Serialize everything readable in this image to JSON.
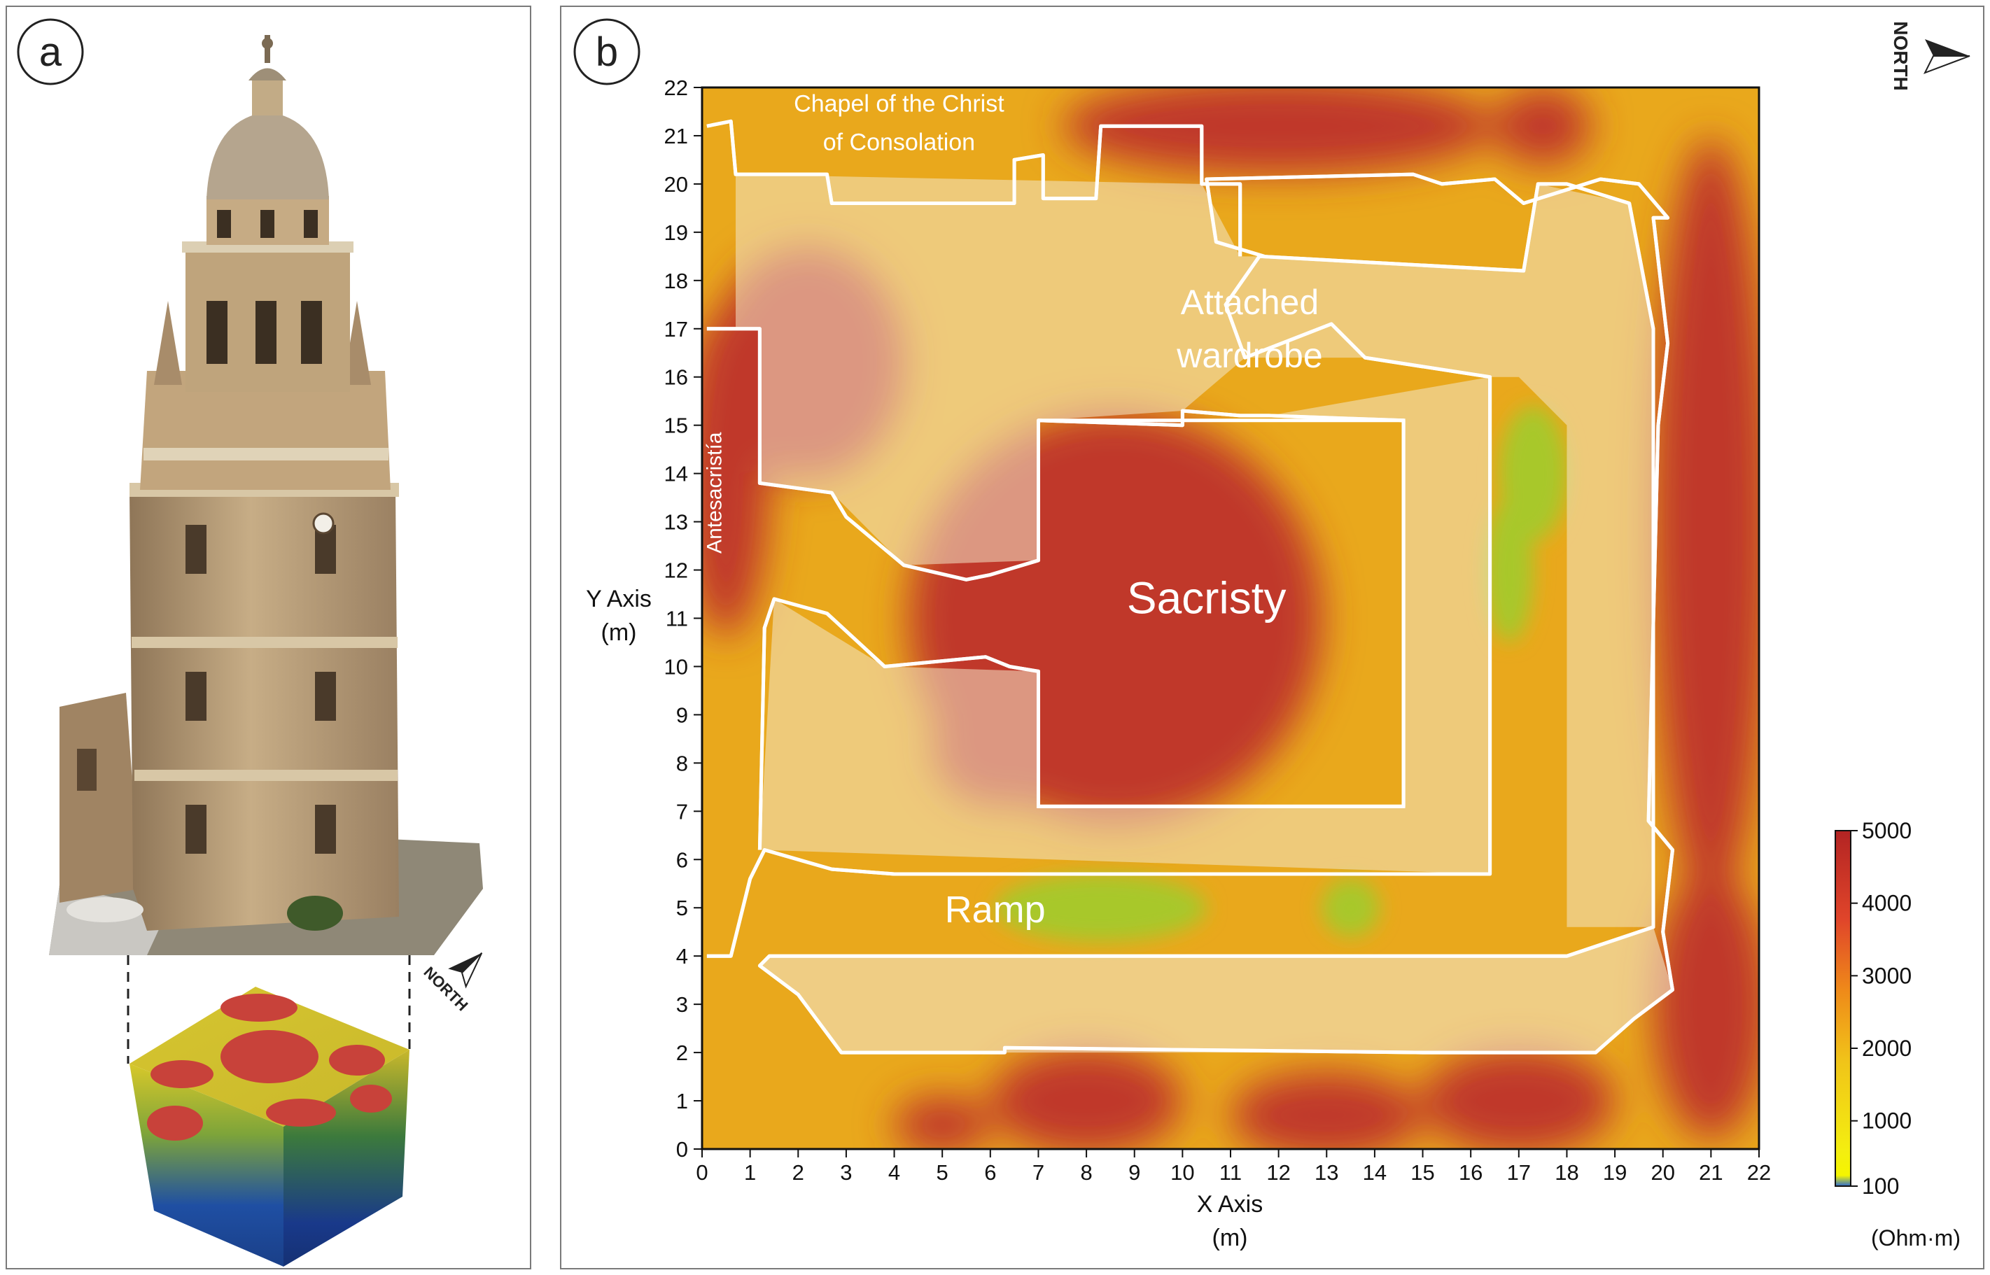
{
  "panels": {
    "a": {
      "label": "a"
    },
    "b": {
      "label": "b"
    }
  },
  "north_label": "NORTH",
  "colors": {
    "high": "#c0392b",
    "mid_high": "#e8731c",
    "mid": "#f0c419",
    "low": "#f5f500",
    "very_low": "#2d6bd1",
    "overlay": "#f3e6c9",
    "outline": "#ffffff",
    "stone": "#b79a74"
  },
  "chart_data": {
    "type": "heatmap",
    "title": "",
    "xlabel": "X Axis",
    "xunit": "(m)",
    "ylabel": "Y Axis",
    "yunit": "(m)",
    "xlim": [
      0,
      22
    ],
    "ylim": [
      0,
      22
    ],
    "xticks": [
      0,
      1,
      2,
      3,
      4,
      5,
      6,
      7,
      8,
      9,
      10,
      11,
      12,
      13,
      14,
      15,
      16,
      17,
      18,
      19,
      20,
      21,
      22
    ],
    "yticks": [
      0,
      1,
      2,
      3,
      4,
      5,
      6,
      7,
      8,
      9,
      10,
      11,
      12,
      13,
      14,
      15,
      16,
      17,
      18,
      19,
      20,
      21,
      22
    ],
    "colorbar": {
      "min": 100,
      "max": 5000,
      "ticks": [
        5000,
        4000,
        3000,
        2000,
        1000,
        100
      ],
      "unit": "(Ohm·m)"
    },
    "room_labels": [
      {
        "text": "Chapel of the Christ",
        "x": 4.1,
        "y": 21.5
      },
      {
        "text": "of Consolation",
        "x": 4.1,
        "y": 20.7
      },
      {
        "text": "Attached",
        "x": 11.4,
        "y": 17.3
      },
      {
        "text": "wardrobe",
        "x": 11.4,
        "y": 16.2
      },
      {
        "text": "Sacristy",
        "x": 10.5,
        "y": 11.1
      },
      {
        "text": "Ramp",
        "x": 6.1,
        "y": 4.7
      },
      {
        "text": "Antesacristía",
        "x": 0.4,
        "y": 13.6
      }
    ],
    "high_resistivity_zones": [
      {
        "cx": 8.6,
        "cy": 11.0,
        "rx": 4.3,
        "ry": 4.3
      },
      {
        "cx": 21.0,
        "cy": 13.0,
        "rx": 1.2,
        "ry": 8.0
      },
      {
        "cx": 21.0,
        "cy": 3.0,
        "rx": 1.2,
        "ry": 2.8
      },
      {
        "cx": 12.0,
        "cy": 21.2,
        "rx": 4.5,
        "ry": 1.0
      },
      {
        "cx": 0.5,
        "cy": 14.0,
        "rx": 0.9,
        "ry": 3.4
      },
      {
        "cx": 8.0,
        "cy": 1.0,
        "rx": 2.0,
        "ry": 1.1
      },
      {
        "cx": 13.0,
        "cy": 0.7,
        "rx": 2.0,
        "ry": 0.9
      },
      {
        "cx": 17.0,
        "cy": 1.0,
        "rx": 2.0,
        "ry": 1.1
      },
      {
        "cx": 5.0,
        "cy": 0.5,
        "rx": 1.0,
        "ry": 0.6
      },
      {
        "cx": 17.5,
        "cy": 21.2,
        "rx": 1.0,
        "ry": 0.8
      },
      {
        "cx": 2.2,
        "cy": 16.3,
        "rx": 2.0,
        "ry": 2.4
      },
      {
        "cx": 6.2,
        "cy": 8.3,
        "rx": 1.4,
        "ry": 1.2
      }
    ],
    "low_resistivity_zones": [
      {
        "cx": 8.3,
        "cy": 5.0,
        "rx": 2.2,
        "ry": 0.7
      },
      {
        "cx": 17.3,
        "cy": 14.0,
        "rx": 0.7,
        "ry": 1.4
      },
      {
        "cx": 16.8,
        "cy": 12.0,
        "rx": 0.5,
        "ry": 1.5
      },
      {
        "cx": 13.5,
        "cy": 5.0,
        "rx": 0.6,
        "ry": 0.6
      }
    ],
    "wall_outlines": [
      [
        [
          0.1,
          4.0
        ],
        [
          0.6,
          4.0
        ],
        [
          1.0,
          5.6
        ],
        [
          1.3,
          6.2
        ],
        [
          2.7,
          5.8
        ],
        [
          4.0,
          5.7
        ],
        [
          16.4,
          5.7
        ],
        [
          16.4,
          16.0
        ],
        [
          13.8,
          16.4
        ],
        [
          13.1,
          17.1
        ],
        [
          11.3,
          16.4
        ],
        [
          10.9,
          17.5
        ],
        [
          11.6,
          18.5
        ],
        [
          17.1,
          18.2
        ],
        [
          17.4,
          20.0
        ],
        [
          18.0,
          20.0
        ],
        [
          19.3,
          19.6
        ],
        [
          19.8,
          17.0
        ],
        [
          19.8,
          4.6
        ],
        [
          18.0,
          4.0
        ],
        [
          1.4,
          4.0
        ],
        [
          1.2,
          3.8
        ],
        [
          2.0,
          3.2
        ],
        [
          2.9,
          2.0
        ],
        [
          6.3,
          2.0
        ],
        [
          6.3,
          2.1
        ],
        [
          15.0,
          2.0
        ],
        [
          15.9,
          2.0
        ],
        [
          18.6,
          2.0
        ],
        [
          19.4,
          2.7
        ],
        [
          20.2,
          3.3
        ],
        [
          20.0,
          4.5
        ],
        [
          20.2,
          6.2
        ],
        [
          19.7,
          6.8
        ],
        [
          19.9,
          15.0
        ],
        [
          20.1,
          16.7
        ],
        [
          19.8,
          19.3
        ],
        [
          20.1,
          19.3
        ],
        [
          19.5,
          20.0
        ],
        [
          18.7,
          20.1
        ],
        [
          17.1,
          19.6
        ],
        [
          16.5,
          20.1
        ],
        [
          15.4,
          20.0
        ],
        [
          14.8,
          20.2
        ],
        [
          10.5,
          20.1
        ],
        [
          10.7,
          18.8
        ],
        [
          11.7,
          18.5
        ]
      ],
      [
        [
          0.1,
          21.2
        ],
        [
          0.6,
          21.3
        ],
        [
          0.7,
          20.2
        ],
        [
          2.6,
          20.2
        ],
        [
          2.7,
          19.6
        ],
        [
          6.5,
          19.6
        ],
        [
          6.5,
          20.5
        ],
        [
          7.1,
          20.6
        ],
        [
          7.1,
          19.7
        ],
        [
          8.2,
          19.7
        ],
        [
          8.3,
          21.2
        ],
        [
          10.4,
          21.2
        ],
        [
          10.4,
          20.0
        ],
        [
          11.2,
          20.0
        ],
        [
          11.2,
          18.5
        ]
      ],
      [
        [
          0.1,
          17.0
        ],
        [
          1.2,
          17.0
        ],
        [
          1.2,
          13.8
        ],
        [
          2.7,
          13.6
        ],
        [
          3.0,
          13.1
        ],
        [
          4.2,
          12.1
        ],
        [
          5.5,
          11.8
        ],
        [
          6.0,
          11.9
        ],
        [
          7.0,
          12.2
        ],
        [
          7.0,
          15.1
        ],
        [
          10.0,
          15.0
        ],
        [
          10.0,
          15.3
        ],
        [
          11.2,
          15.2
        ],
        [
          11.8,
          15.2
        ],
        [
          14.6,
          15.1
        ],
        [
          14.6,
          7.1
        ],
        [
          7.0,
          7.1
        ],
        [
          7.0,
          9.9
        ],
        [
          6.4,
          10.0
        ],
        [
          5.9,
          10.2
        ],
        [
          3.8,
          10.0
        ],
        [
          2.6,
          11.1
        ],
        [
          1.5,
          11.4
        ],
        [
          1.3,
          10.8
        ],
        [
          1.2,
          6.2
        ]
      ]
    ]
  }
}
